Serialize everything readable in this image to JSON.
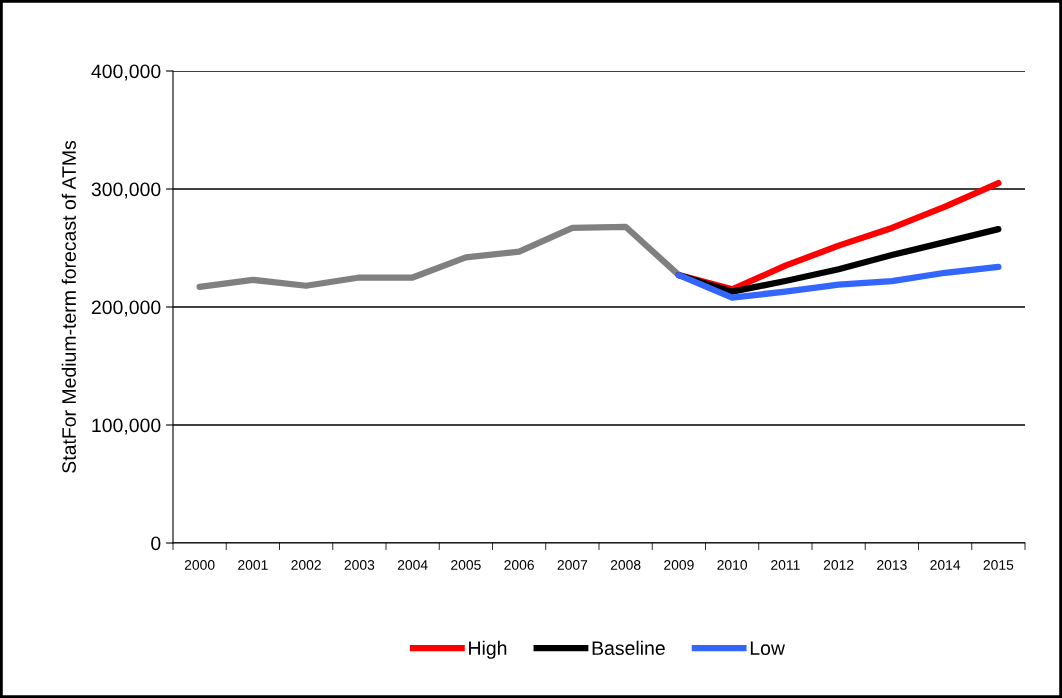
{
  "chart_data": {
    "type": "line",
    "ylabel": "StatFor Medium-term forecast of ATMs",
    "categories": [
      "2000",
      "2001",
      "2002",
      "2003",
      "2004",
      "2005",
      "2006",
      "2007",
      "2008",
      "2009",
      "2010",
      "2011",
      "2012",
      "2013",
      "2014",
      "2015"
    ],
    "series": [
      {
        "color": "#808080",
        "values": [
          217000,
          223000,
          218000,
          225000,
          225000,
          242000,
          247000,
          267000,
          268000,
          227000,
          null,
          null,
          null,
          null,
          null,
          null
        ]
      },
      {
        "name": "High",
        "color": "#ff0000",
        "values": [
          null,
          null,
          null,
          null,
          null,
          null,
          null,
          null,
          null,
          227000,
          215000,
          235000,
          252000,
          267000,
          285000,
          305000
        ]
      },
      {
        "name": "Baseline",
        "color": "#000000",
        "values": [
          null,
          null,
          null,
          null,
          null,
          null,
          null,
          null,
          null,
          227000,
          213000,
          222000,
          232000,
          244000,
          255000,
          266000
        ]
      },
      {
        "name": "Low",
        "color": "#3366ff",
        "values": [
          null,
          null,
          null,
          null,
          null,
          null,
          null,
          null,
          null,
          227000,
          208000,
          213000,
          219000,
          222000,
          229000,
          234000
        ]
      }
    ],
    "ylim": [
      0,
      400000
    ],
    "yticks": [
      {
        "value": 0,
        "label": "0"
      },
      {
        "value": 100000,
        "label": "100,000"
      },
      {
        "value": 200000,
        "label": "200,000"
      },
      {
        "value": 300000,
        "label": "300,000"
      },
      {
        "value": 400000,
        "label": "400,000"
      }
    ],
    "grid": "y",
    "legend": "bottom",
    "marker": "none",
    "line_style": "solid"
  }
}
